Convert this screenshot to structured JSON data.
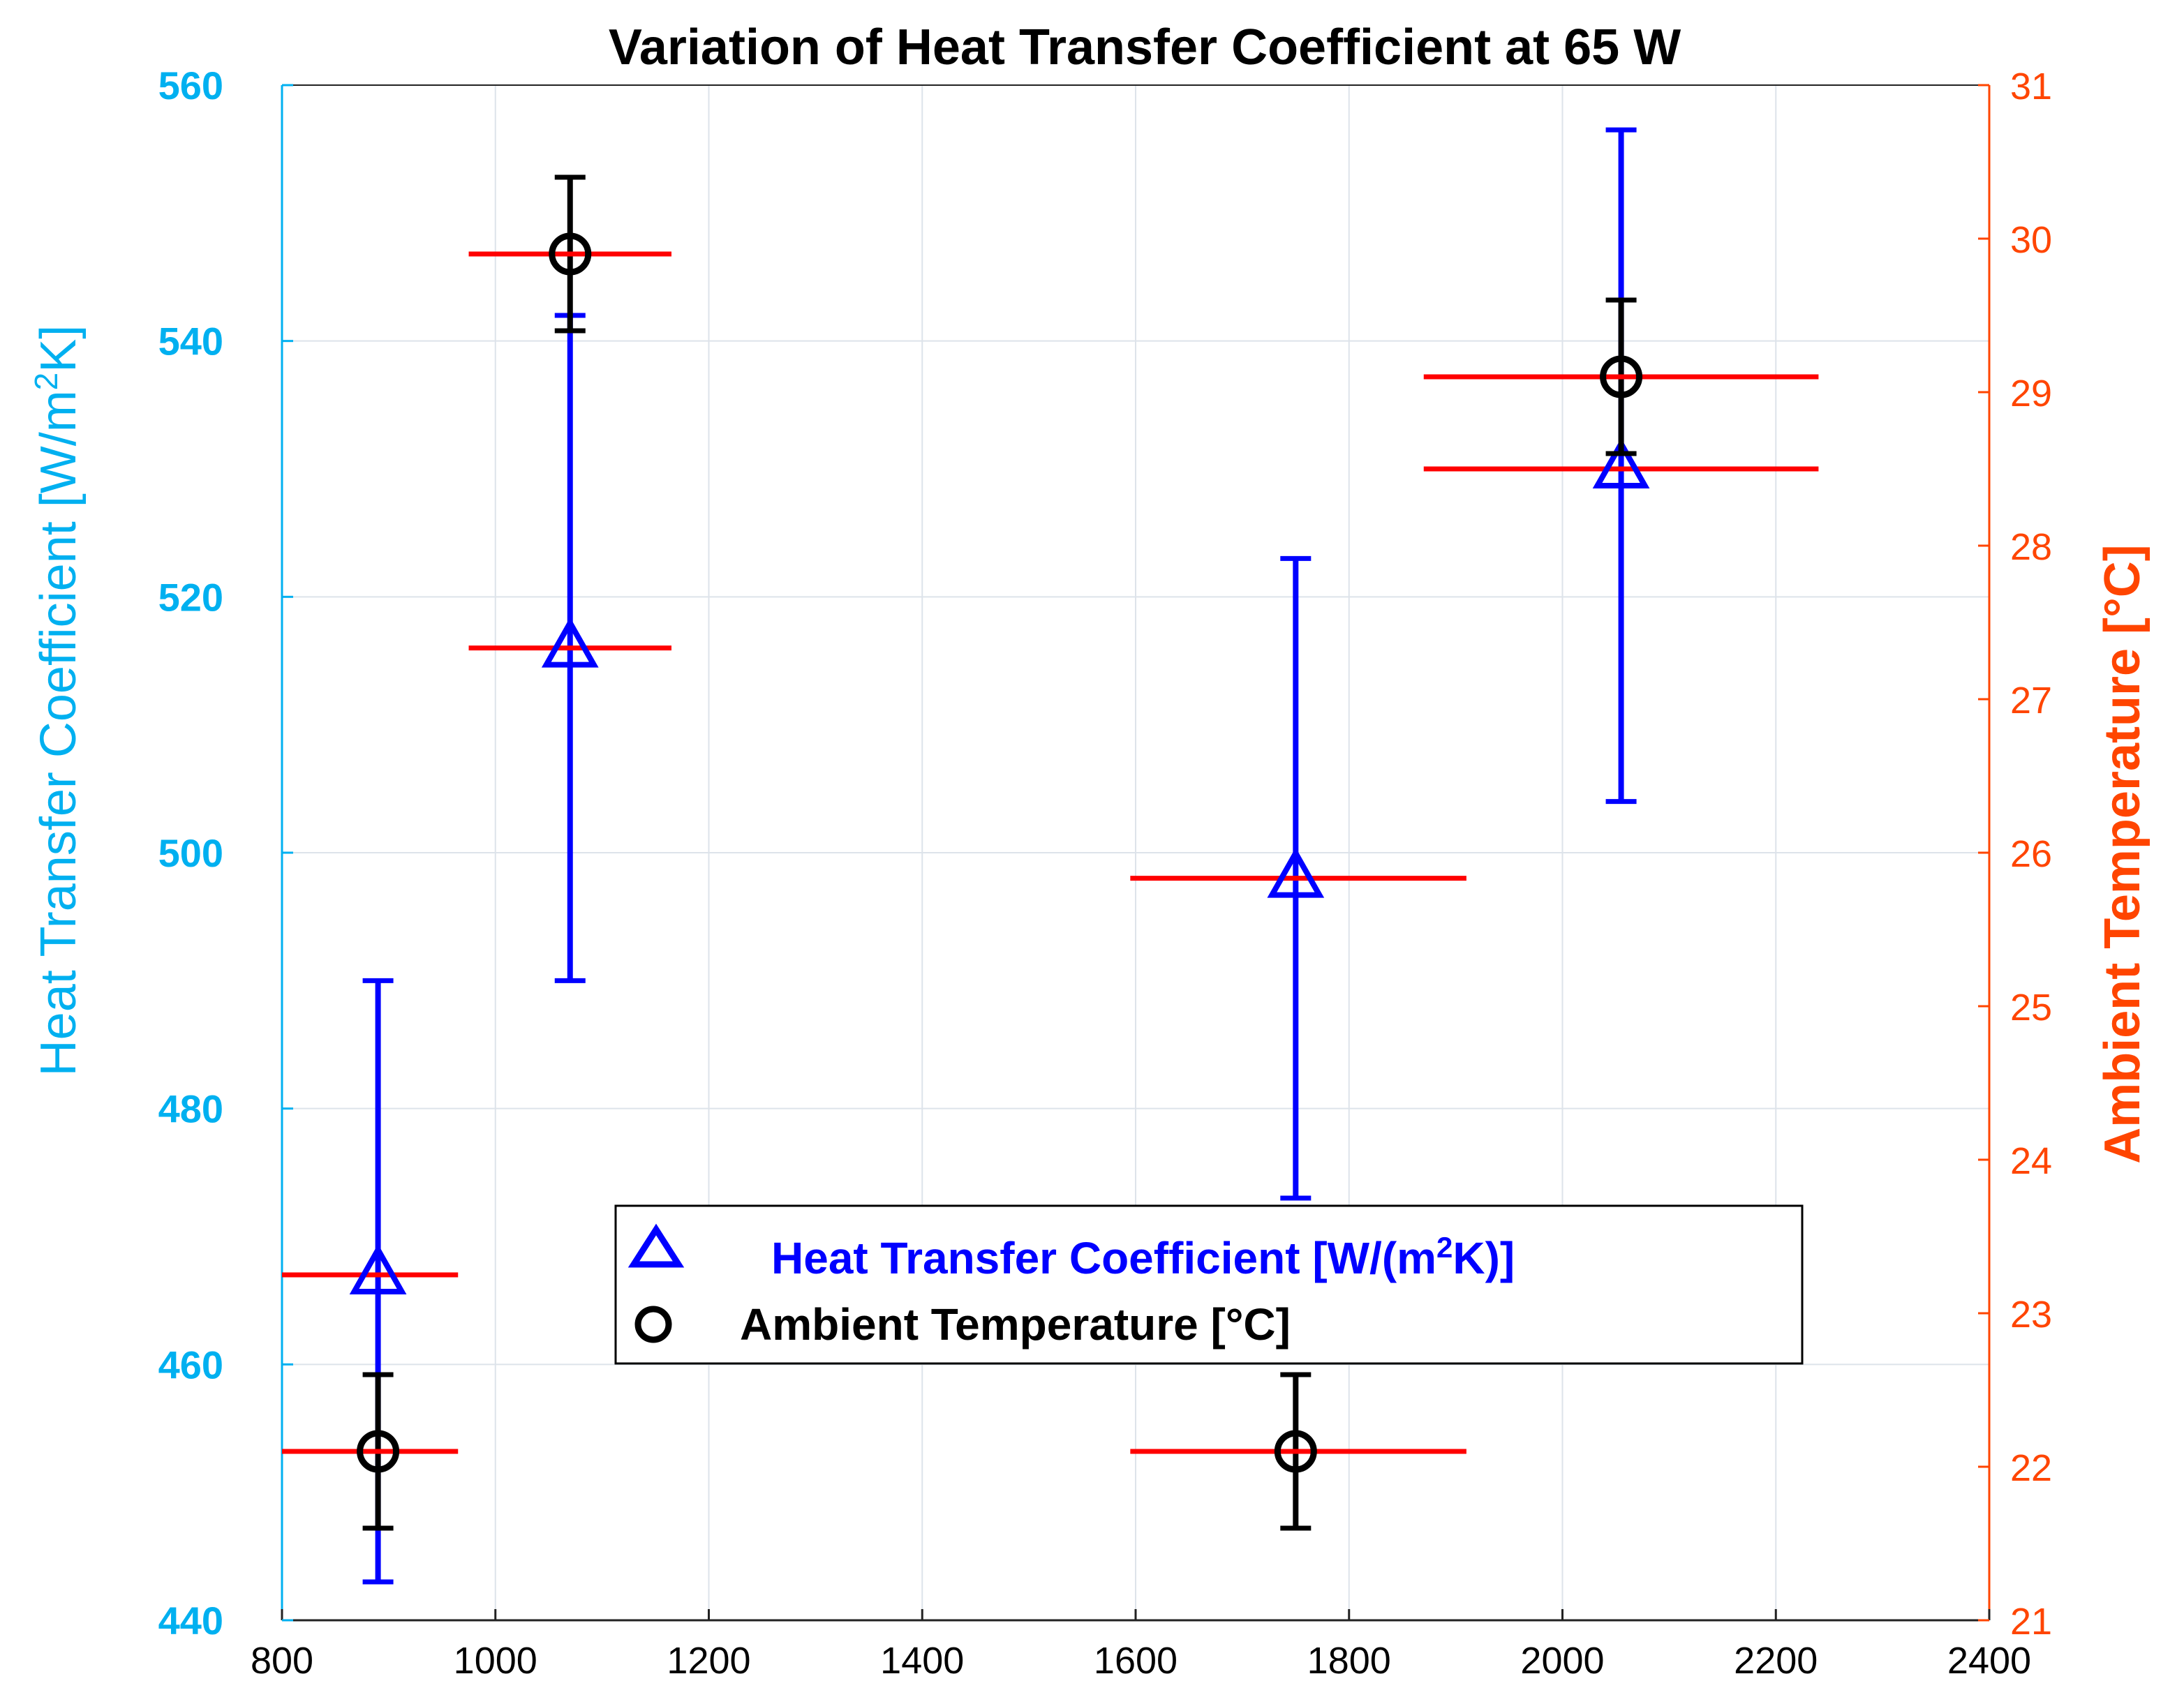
{
  "chart_data": {
    "type": "scatter",
    "title": "Variation of Heat Transfer Coefficient at 65 W",
    "x_axis": {
      "range": [
        800,
        2400
      ],
      "ticks": [
        800,
        1000,
        1200,
        1400,
        1600,
        1800,
        2000,
        2200,
        2400
      ],
      "tick_labels": [
        "800",
        "1000",
        "1200",
        "1400",
        "1600",
        "1800",
        "2000",
        "2200",
        "2400"
      ],
      "grid": true
    },
    "y_left": {
      "label": "Heat Transfer Coefficient [W/m²K]",
      "label_main": "Heat Transfer Coefficient [W/m",
      "label_sup": "2",
      "label_end": "K]",
      "range": [
        440,
        560
      ],
      "ticks": [
        440,
        460,
        480,
        500,
        520,
        540,
        560
      ],
      "tick_labels": [
        "440",
        "460",
        "480",
        "500",
        "520",
        "540",
        "560"
      ],
      "color": "#00b0f0",
      "grid": true
    },
    "y_right": {
      "label": "Ambient Temperature [°C]",
      "range": [
        21,
        31
      ],
      "ticks": [
        21,
        22,
        23,
        24,
        25,
        26,
        27,
        28,
        29,
        30,
        31
      ],
      "tick_labels": [
        "21",
        "22",
        "23",
        "24",
        "25",
        "26",
        "27",
        "28",
        "29",
        "30",
        "31"
      ],
      "color": "#ff4500"
    },
    "series": [
      {
        "name": "Heat Transfer Coefficient [W/(m²K)]",
        "axis": "left",
        "marker": "triangle",
        "color": "#0000ff",
        "points": [
          {
            "x": 890,
            "y": 467,
            "ylow": 443,
            "yhigh": 490,
            "xlow": 800,
            "xhigh": 965
          },
          {
            "x": 1070,
            "y": 516,
            "ylow": 490,
            "yhigh": 542,
            "xlow": 975,
            "xhigh": 1165
          },
          {
            "x": 1750,
            "y": 498,
            "ylow": 473,
            "yhigh": 523,
            "xlow": 1595,
            "xhigh": 1910
          },
          {
            "x": 2055,
            "y": 530,
            "ylow": 504,
            "yhigh": 556.5,
            "xlow": 1870,
            "xhigh": 2240
          }
        ]
      },
      {
        "name": "Ambient Temperature [°C]",
        "axis": "right",
        "marker": "circle",
        "color": "#000000",
        "points": [
          {
            "x": 890,
            "y": 22.1,
            "ylow": 21.6,
            "yhigh": 22.6,
            "xlow": 800,
            "xhigh": 965
          },
          {
            "x": 1070,
            "y": 29.9,
            "ylow": 29.4,
            "yhigh": 30.4,
            "xlow": 975,
            "xhigh": 1165
          },
          {
            "x": 1750,
            "y": 22.1,
            "ylow": 21.6,
            "yhigh": 22.6,
            "xlow": 1595,
            "xhigh": 1910
          },
          {
            "x": 2055,
            "y": 29.1,
            "ylow": 28.6,
            "yhigh": 29.6,
            "xlow": 1870,
            "xhigh": 2240
          }
        ]
      }
    ],
    "legend": {
      "placement": "center",
      "entries": [
        {
          "label_main": "Heat Transfer Coefficient [W/(m",
          "label_sup": "2",
          "label_end": "K)]",
          "color": "#0000ff",
          "marker": "triangle"
        },
        {
          "label_main": "Ambient Temperature [°C]",
          "label_sup": "",
          "label_end": "",
          "color": "#000000",
          "marker": "circle"
        }
      ]
    },
    "colors": {
      "horizontal_error": "#ff0000",
      "grid": "#dde3ea"
    }
  }
}
